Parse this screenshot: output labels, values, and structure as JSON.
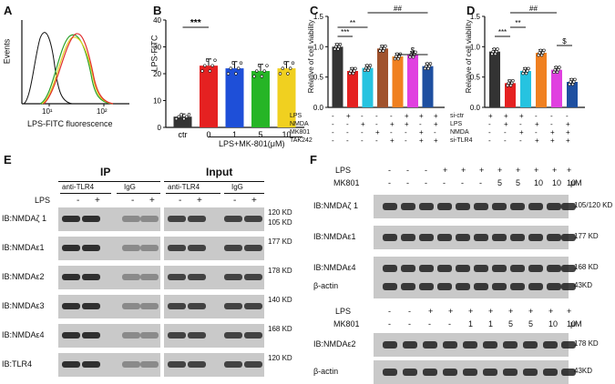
{
  "panels": {
    "A": {
      "label": "A",
      "ylabel": "Events",
      "xlabel": "LPS-FITC fluorescence",
      "ticks": [
        "10¹",
        "10²"
      ],
      "curve_colors": [
        "#111111",
        "#e03030",
        "#2aa02a",
        "#e0d020"
      ]
    },
    "B": {
      "label": "B",
      "ylabel": "LPS-FITC",
      "xlabel": "LPS+MK-801(μM)",
      "sig": "***",
      "chart_data": {
        "type": "bar",
        "categories": [
          "ctr",
          "0",
          "1",
          "5",
          "10"
        ],
        "values": [
          4,
          23,
          22,
          21,
          22
        ],
        "errors": [
          1,
          2.5,
          2.5,
          2.5,
          2.5
        ],
        "colors": [
          "#333333",
          "#e52121",
          "#1e4fd8",
          "#26b526",
          "#f0d020"
        ],
        "yticks": [
          "0",
          "10",
          "20",
          "30",
          "40"
        ],
        "ylim": [
          0,
          40
        ]
      }
    },
    "C": {
      "label": "C",
      "ylabel": "Relative of cell viability",
      "yticks": [
        "0.0",
        "0.5",
        "1.0",
        "1.5"
      ],
      "sig": [
        "***",
        "**",
        "##",
        "$"
      ],
      "row_labels": [
        "LPS",
        "NMDA",
        "MK801",
        "TAK242"
      ],
      "signs": [
        [
          "-",
          "+",
          "-",
          "-",
          "-",
          "+",
          "+",
          "+"
        ],
        [
          "-",
          "-",
          "+",
          "-",
          "+",
          "+",
          "-",
          "+"
        ],
        [
          "-",
          "-",
          "-",
          "+",
          "-",
          "-",
          "+",
          "-"
        ],
        [
          "-",
          "-",
          "-",
          "-",
          "+",
          "-",
          "+",
          "+"
        ]
      ],
      "chart_data": {
        "type": "bar",
        "values": [
          1.0,
          0.6,
          0.65,
          0.97,
          0.84,
          0.87,
          0.68
        ],
        "colors": [
          "#333333",
          "#e52121",
          "#26c3e0",
          "#a0522d",
          "#f08020",
          "#e040e0",
          "#1e4fa0"
        ],
        "ylim": [
          0,
          1.5
        ]
      }
    },
    "D": {
      "label": "D",
      "ylabel": "Relative of cell viability",
      "yticks": [
        "0.0",
        "0.5",
        "1.0",
        "1.5"
      ],
      "sig": [
        "***",
        "**",
        "##",
        "$"
      ],
      "row_labels": [
        "si-ctr",
        "LPS",
        "NMDA",
        "si-TLR4"
      ],
      "signs": [
        [
          "+",
          "+",
          "+",
          "-",
          "-",
          "-"
        ],
        [
          "-",
          "+",
          "-",
          "+",
          "-",
          "+"
        ],
        [
          "-",
          "-",
          "+",
          "-",
          "+",
          "+"
        ],
        [
          "-",
          "-",
          "-",
          "+",
          "+",
          "+"
        ]
      ],
      "chart_data": {
        "type": "bar",
        "values": [
          0.92,
          0.4,
          0.6,
          0.9,
          0.62,
          0.42
        ],
        "colors": [
          "#333333",
          "#e52121",
          "#26c3e0",
          "#f08020",
          "#e040e0",
          "#1e4fa0"
        ],
        "ylim": [
          0,
          1.5
        ]
      }
    },
    "E": {
      "label": "E",
      "ip_title": "IP",
      "input_title": "Input",
      "col_groups": [
        "anti-TLR4",
        "IgG",
        "anti-TLR4",
        "IgG"
      ],
      "lps_label": "LPS",
      "lps_signs": [
        "-",
        "+",
        "-",
        "+",
        "-",
        "+",
        "-",
        "+"
      ],
      "rows": [
        {
          "name": "IB:NMDAζ 1",
          "kd": [
            "120 KD",
            "105 KD"
          ]
        },
        {
          "name": "IB:NMDAε1",
          "kd": [
            "177 KD"
          ]
        },
        {
          "name": "IB:NMDAε2",
          "kd": [
            "178 KD"
          ]
        },
        {
          "name": "IB:NMDAε3",
          "kd": [
            "140 KD"
          ]
        },
        {
          "name": "IB:NMDAε4",
          "kd": [
            "168 KD"
          ]
        },
        {
          "name": "IB:TLR4",
          "kd": [
            "120 KD"
          ]
        }
      ]
    },
    "F": {
      "label": "F",
      "top": {
        "lps_label": "LPS",
        "mk_label": "MK801",
        "unit": "μM",
        "lps_signs": [
          "-",
          "-",
          "-",
          "+",
          "+",
          "+",
          "+",
          "+",
          "+",
          "+",
          "+"
        ],
        "mk_vals": [
          "-",
          "-",
          "-",
          "-",
          "-",
          "-",
          "5",
          "5",
          "10",
          "10",
          "10"
        ],
        "rows": [
          {
            "name": "IB:NMDAζ 1",
            "kd": "105/120 KD"
          },
          {
            "name": "IB:NMDAε1",
            "kd": "177 KD"
          },
          {
            "name": "IB:NMDAε4",
            "kd": "168 KD"
          },
          {
            "name": "β-actin",
            "kd": "43KD"
          }
        ]
      },
      "bottom": {
        "lps_label": "LPS",
        "mk_label": "MK801",
        "unit": "μM",
        "lps_signs": [
          "-",
          "-",
          "+",
          "+",
          "+",
          "+",
          "+",
          "+",
          "+",
          "+"
        ],
        "mk_vals": [
          "-",
          "-",
          "-",
          "-",
          "1",
          "1",
          "5",
          "5",
          "10",
          "10"
        ],
        "rows": [
          {
            "name": "IB:NMDAε2",
            "kd": "178 KD"
          },
          {
            "name": "β-actin",
            "kd": "43KD"
          }
        ]
      }
    }
  }
}
